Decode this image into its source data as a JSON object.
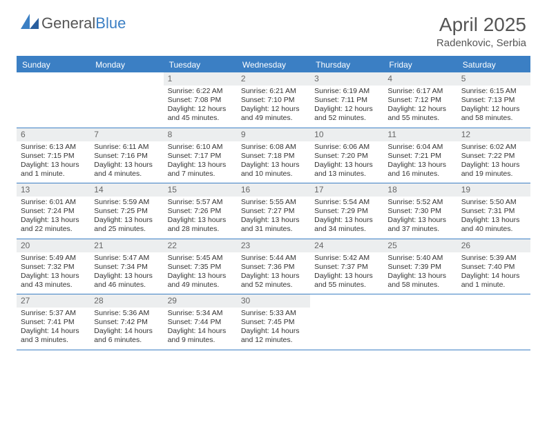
{
  "logo": {
    "text1": "General",
    "text2": "Blue",
    "brand_color": "#3b7fc4"
  },
  "title": "April 2025",
  "location": "Radenkovic, Serbia",
  "header_bg": "#3b7fc4",
  "header_text_color": "#ffffff",
  "daynum_bg": "#eceeef",
  "border_color": "#3b7fc4",
  "day_names": [
    "Sunday",
    "Monday",
    "Tuesday",
    "Wednesday",
    "Thursday",
    "Friday",
    "Saturday"
  ],
  "weeks": [
    [
      null,
      null,
      {
        "n": "1",
        "sunrise": "Sunrise: 6:22 AM",
        "sunset": "Sunset: 7:08 PM",
        "daylight": "Daylight: 12 hours and 45 minutes."
      },
      {
        "n": "2",
        "sunrise": "Sunrise: 6:21 AM",
        "sunset": "Sunset: 7:10 PM",
        "daylight": "Daylight: 12 hours and 49 minutes."
      },
      {
        "n": "3",
        "sunrise": "Sunrise: 6:19 AM",
        "sunset": "Sunset: 7:11 PM",
        "daylight": "Daylight: 12 hours and 52 minutes."
      },
      {
        "n": "4",
        "sunrise": "Sunrise: 6:17 AM",
        "sunset": "Sunset: 7:12 PM",
        "daylight": "Daylight: 12 hours and 55 minutes."
      },
      {
        "n": "5",
        "sunrise": "Sunrise: 6:15 AM",
        "sunset": "Sunset: 7:13 PM",
        "daylight": "Daylight: 12 hours and 58 minutes."
      }
    ],
    [
      {
        "n": "6",
        "sunrise": "Sunrise: 6:13 AM",
        "sunset": "Sunset: 7:15 PM",
        "daylight": "Daylight: 13 hours and 1 minute."
      },
      {
        "n": "7",
        "sunrise": "Sunrise: 6:11 AM",
        "sunset": "Sunset: 7:16 PM",
        "daylight": "Daylight: 13 hours and 4 minutes."
      },
      {
        "n": "8",
        "sunrise": "Sunrise: 6:10 AM",
        "sunset": "Sunset: 7:17 PM",
        "daylight": "Daylight: 13 hours and 7 minutes."
      },
      {
        "n": "9",
        "sunrise": "Sunrise: 6:08 AM",
        "sunset": "Sunset: 7:18 PM",
        "daylight": "Daylight: 13 hours and 10 minutes."
      },
      {
        "n": "10",
        "sunrise": "Sunrise: 6:06 AM",
        "sunset": "Sunset: 7:20 PM",
        "daylight": "Daylight: 13 hours and 13 minutes."
      },
      {
        "n": "11",
        "sunrise": "Sunrise: 6:04 AM",
        "sunset": "Sunset: 7:21 PM",
        "daylight": "Daylight: 13 hours and 16 minutes."
      },
      {
        "n": "12",
        "sunrise": "Sunrise: 6:02 AM",
        "sunset": "Sunset: 7:22 PM",
        "daylight": "Daylight: 13 hours and 19 minutes."
      }
    ],
    [
      {
        "n": "13",
        "sunrise": "Sunrise: 6:01 AM",
        "sunset": "Sunset: 7:24 PM",
        "daylight": "Daylight: 13 hours and 22 minutes."
      },
      {
        "n": "14",
        "sunrise": "Sunrise: 5:59 AM",
        "sunset": "Sunset: 7:25 PM",
        "daylight": "Daylight: 13 hours and 25 minutes."
      },
      {
        "n": "15",
        "sunrise": "Sunrise: 5:57 AM",
        "sunset": "Sunset: 7:26 PM",
        "daylight": "Daylight: 13 hours and 28 minutes."
      },
      {
        "n": "16",
        "sunrise": "Sunrise: 5:55 AM",
        "sunset": "Sunset: 7:27 PM",
        "daylight": "Daylight: 13 hours and 31 minutes."
      },
      {
        "n": "17",
        "sunrise": "Sunrise: 5:54 AM",
        "sunset": "Sunset: 7:29 PM",
        "daylight": "Daylight: 13 hours and 34 minutes."
      },
      {
        "n": "18",
        "sunrise": "Sunrise: 5:52 AM",
        "sunset": "Sunset: 7:30 PM",
        "daylight": "Daylight: 13 hours and 37 minutes."
      },
      {
        "n": "19",
        "sunrise": "Sunrise: 5:50 AM",
        "sunset": "Sunset: 7:31 PM",
        "daylight": "Daylight: 13 hours and 40 minutes."
      }
    ],
    [
      {
        "n": "20",
        "sunrise": "Sunrise: 5:49 AM",
        "sunset": "Sunset: 7:32 PM",
        "daylight": "Daylight: 13 hours and 43 minutes."
      },
      {
        "n": "21",
        "sunrise": "Sunrise: 5:47 AM",
        "sunset": "Sunset: 7:34 PM",
        "daylight": "Daylight: 13 hours and 46 minutes."
      },
      {
        "n": "22",
        "sunrise": "Sunrise: 5:45 AM",
        "sunset": "Sunset: 7:35 PM",
        "daylight": "Daylight: 13 hours and 49 minutes."
      },
      {
        "n": "23",
        "sunrise": "Sunrise: 5:44 AM",
        "sunset": "Sunset: 7:36 PM",
        "daylight": "Daylight: 13 hours and 52 minutes."
      },
      {
        "n": "24",
        "sunrise": "Sunrise: 5:42 AM",
        "sunset": "Sunset: 7:37 PM",
        "daylight": "Daylight: 13 hours and 55 minutes."
      },
      {
        "n": "25",
        "sunrise": "Sunrise: 5:40 AM",
        "sunset": "Sunset: 7:39 PM",
        "daylight": "Daylight: 13 hours and 58 minutes."
      },
      {
        "n": "26",
        "sunrise": "Sunrise: 5:39 AM",
        "sunset": "Sunset: 7:40 PM",
        "daylight": "Daylight: 14 hours and 1 minute."
      }
    ],
    [
      {
        "n": "27",
        "sunrise": "Sunrise: 5:37 AM",
        "sunset": "Sunset: 7:41 PM",
        "daylight": "Daylight: 14 hours and 3 minutes."
      },
      {
        "n": "28",
        "sunrise": "Sunrise: 5:36 AM",
        "sunset": "Sunset: 7:42 PM",
        "daylight": "Daylight: 14 hours and 6 minutes."
      },
      {
        "n": "29",
        "sunrise": "Sunrise: 5:34 AM",
        "sunset": "Sunset: 7:44 PM",
        "daylight": "Daylight: 14 hours and 9 minutes."
      },
      {
        "n": "30",
        "sunrise": "Sunrise: 5:33 AM",
        "sunset": "Sunset: 7:45 PM",
        "daylight": "Daylight: 14 hours and 12 minutes."
      },
      null,
      null,
      null
    ]
  ]
}
